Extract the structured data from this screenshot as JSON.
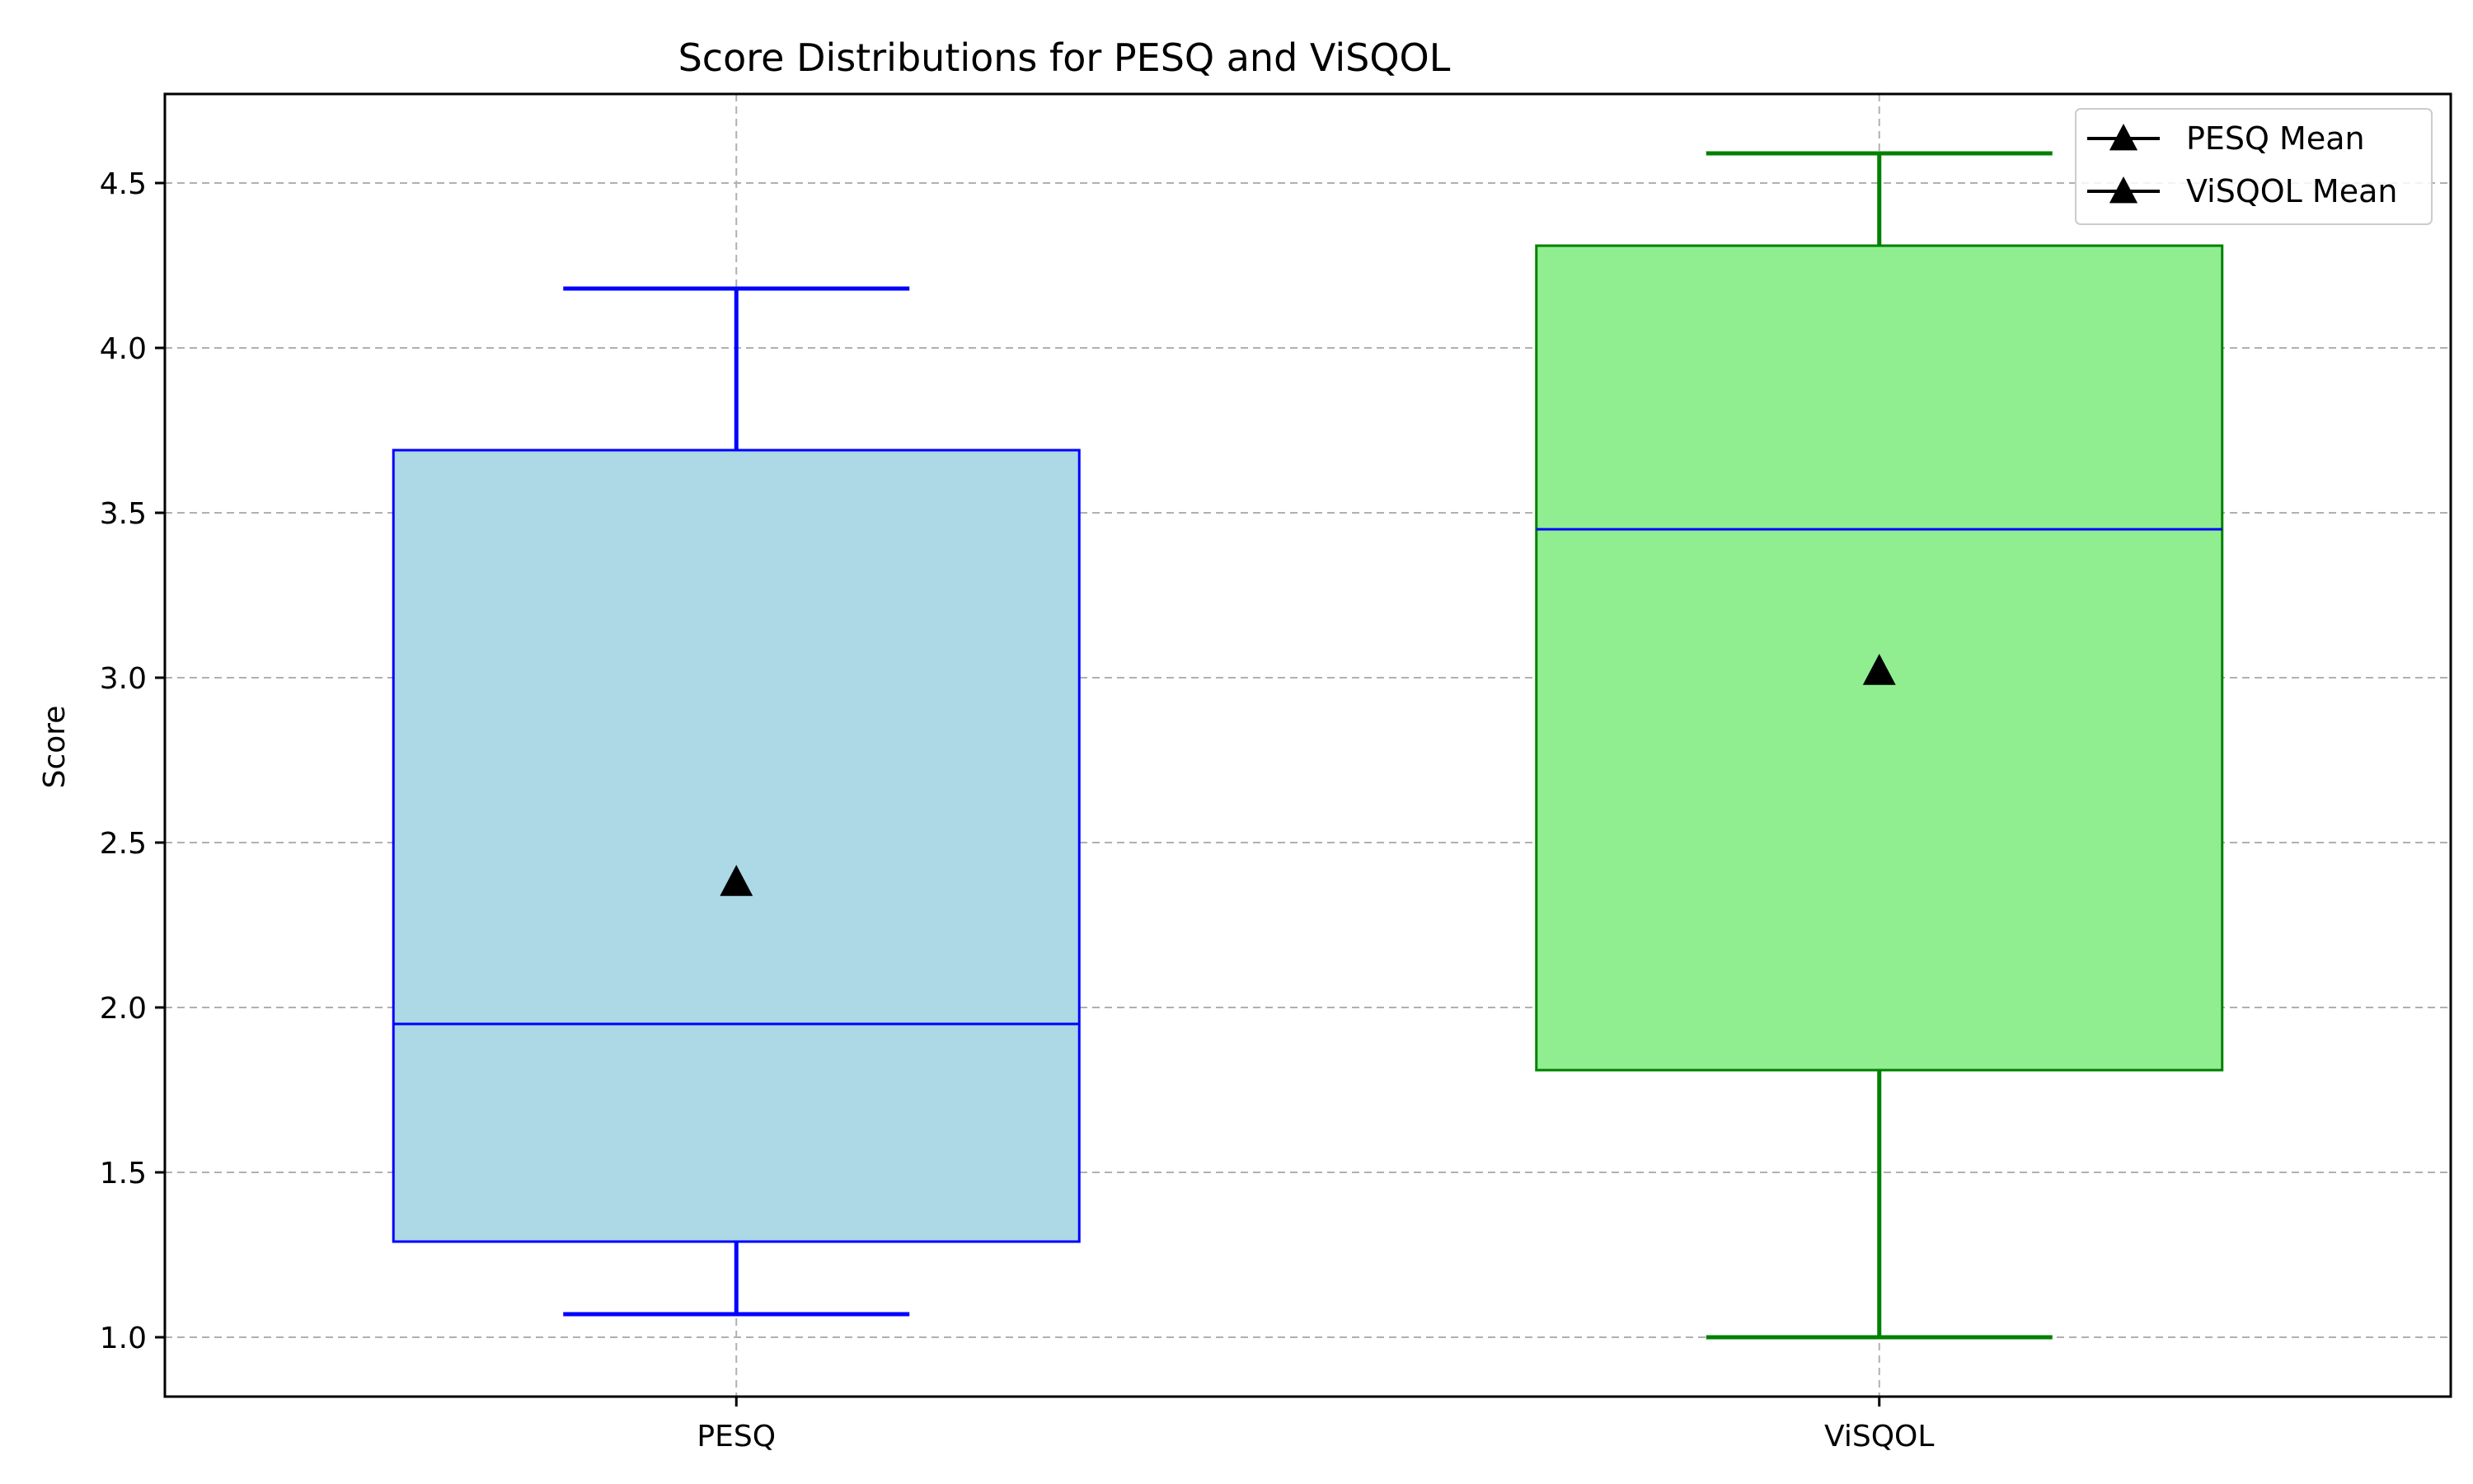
{
  "chart_data": {
    "type": "box",
    "title": "Score Distributions for PESQ and ViSQOL",
    "xlabel": "",
    "ylabel": "Score",
    "categories": [
      "PESQ",
      "ViSQOL"
    ],
    "ylim": [
      0.82,
      4.77
    ],
    "yticks": [
      1.0,
      1.5,
      2.0,
      2.5,
      3.0,
      3.5,
      4.0,
      4.5
    ],
    "ytick_labels": [
      "1.0",
      "1.5",
      "2.0",
      "2.5",
      "3.0",
      "3.5",
      "4.0",
      "4.5"
    ],
    "grid": true,
    "legend_position": "top-right",
    "series": [
      {
        "category": "PESQ",
        "whisker_low": 1.07,
        "q1": 1.29,
        "median": 1.95,
        "q3": 3.69,
        "whisker_high": 4.18,
        "mean": 2.38,
        "box_fill": "#add8e6",
        "box_edge": "#0000ff",
        "whisker_color": "#0000ff",
        "median_color": "#0000ff"
      },
      {
        "category": "ViSQOL",
        "whisker_low": 1.0,
        "q1": 1.81,
        "median": 3.45,
        "q3": 4.31,
        "whisker_high": 4.59,
        "mean": 3.02,
        "box_fill": "#90ee90",
        "box_edge": "#008000",
        "whisker_color": "#008000",
        "median_color": "#0000ff"
      }
    ],
    "legend": [
      {
        "label": "PESQ Mean",
        "marker": "triangle-up",
        "color": "#000000"
      },
      {
        "label": "ViSQOL Mean",
        "marker": "triangle-up",
        "color": "#000000"
      }
    ],
    "colors": {
      "grid": "#b0b0b0",
      "axes": "#000000",
      "mean_marker": "#000000"
    }
  }
}
